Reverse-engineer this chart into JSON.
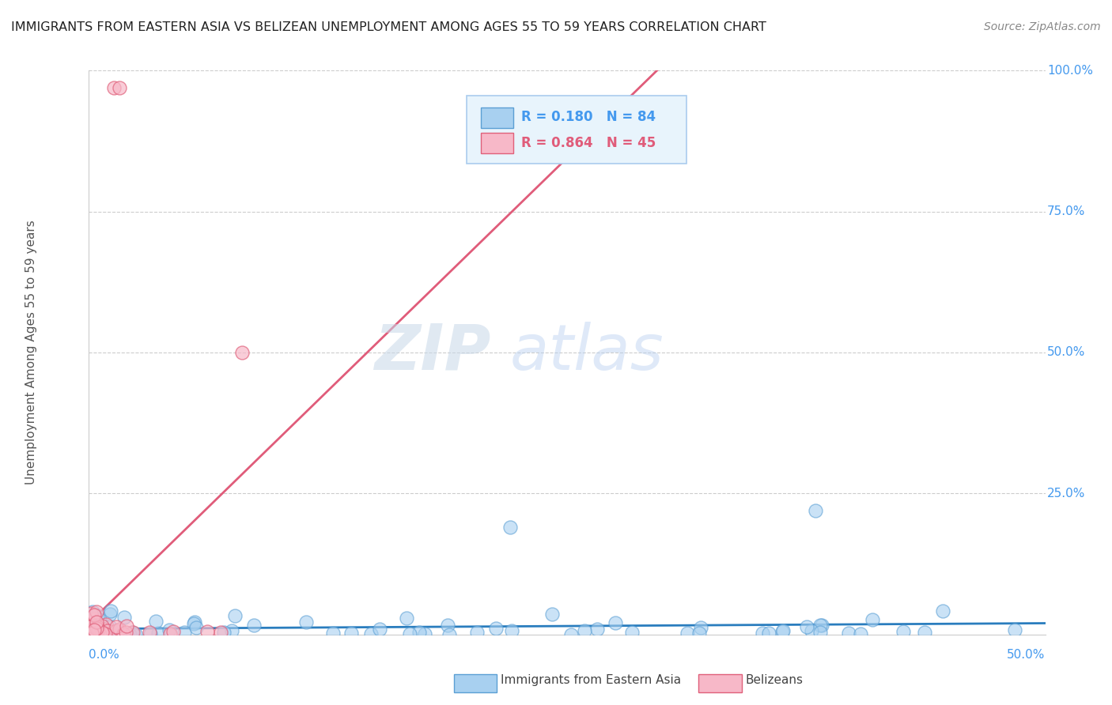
{
  "title": "IMMIGRANTS FROM EASTERN ASIA VS BELIZEAN UNEMPLOYMENT AMONG AGES 55 TO 59 YEARS CORRELATION CHART",
  "source": "Source: ZipAtlas.com",
  "ylabel_label": "Unemployment Among Ages 55 to 59 years",
  "series_blue": {
    "name": "Immigrants from Eastern Asia",
    "R": 0.18,
    "N": 84,
    "color": "#a8d0f0",
    "edge_color": "#5b9fd4",
    "alpha": 0.6
  },
  "series_pink": {
    "name": "Belizeans",
    "R": 0.864,
    "N": 45,
    "color": "#f7b8c8",
    "edge_color": "#e0607a",
    "alpha": 0.7
  },
  "watermark_zip": "ZIP",
  "watermark_atlas": "atlas",
  "trend_blue_color": "#2a7dbe",
  "trend_pink_color": "#e05c7a",
  "bg_color": "#ffffff",
  "grid_color": "#cccccc",
  "right_label_color": "#4499ee",
  "axis_label_color": "#555555",
  "title_color": "#222222",
  "source_color": "#888888",
  "legend_bg": "#e8f4fc",
  "legend_border": "#aaccee"
}
